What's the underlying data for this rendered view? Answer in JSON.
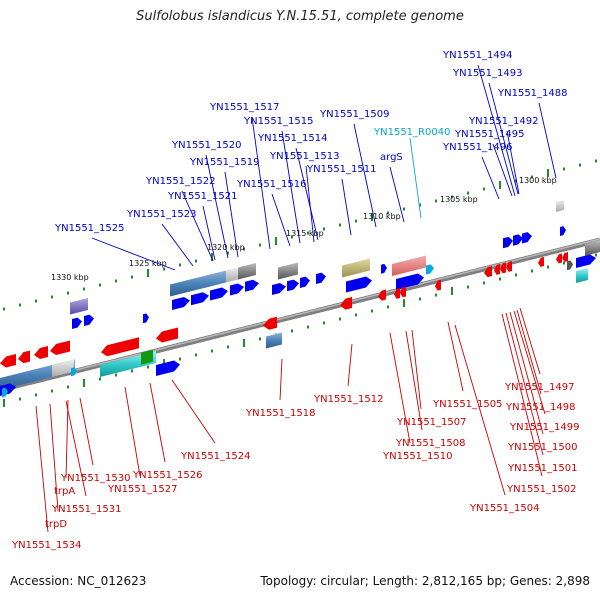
{
  "title": "Sulfolobus islandicus Y.N.15.51, complete genome",
  "footer": {
    "accession": "Accession: NC_012623",
    "summary": "Topology: circular; Length: 2,812,165 bp; Genes: 2,898"
  },
  "colors": {
    "forward_label": "#0000cc",
    "reverse_label": "#cc0000",
    "rna_label": "#00aacc",
    "backbone": "#808080",
    "tick": "#228b22"
  },
  "kbp_marks": [
    {
      "text": "1300 kbp"
    },
    {
      "text": "1305 kbp"
    },
    {
      "text": "1310 kbp"
    },
    {
      "text": "1315 kbp"
    },
    {
      "text": "1320 kbp"
    },
    {
      "text": "1325 kbp"
    },
    {
      "text": "1330 kbp"
    }
  ],
  "forward_labels": [
    {
      "text": "YN1551_1494"
    },
    {
      "text": "YN1551_1493"
    },
    {
      "text": "YN1551_1488"
    },
    {
      "text": "YN1551_1492"
    },
    {
      "text": "YN1551_1495"
    },
    {
      "text": "YN1551_1496"
    },
    {
      "text": "YN1551_1517"
    },
    {
      "text": "YN1551_1509"
    },
    {
      "text": "YN1551_1515"
    },
    {
      "text": "YN1551_1514"
    },
    {
      "text": "YN1551_1520"
    },
    {
      "text": "YN1551_1513"
    },
    {
      "text": "YN1551_1519"
    },
    {
      "text": "YN1551_1511"
    },
    {
      "text": "argS"
    },
    {
      "text": "YN1551_1522"
    },
    {
      "text": "YN1551_1516"
    },
    {
      "text": "YN1551_1521"
    },
    {
      "text": "YN1551_1523"
    },
    {
      "text": "YN1551_1525"
    }
  ],
  "rna_labels": [
    {
      "text": "YN1551_R0040"
    }
  ],
  "reverse_labels": [
    {
      "text": "YN1551_1497"
    },
    {
      "text": "YN1551_1498"
    },
    {
      "text": "YN1551_1499"
    },
    {
      "text": "YN1551_1500"
    },
    {
      "text": "YN1551_1501"
    },
    {
      "text": "YN1551_1502"
    },
    {
      "text": "YN1551_1504"
    },
    {
      "text": "YN1551_1505"
    },
    {
      "text": "YN1551_1507"
    },
    {
      "text": "YN1551_1508"
    },
    {
      "text": "YN1551_1510"
    },
    {
      "text": "YN1551_1512"
    },
    {
      "text": "YN1551_1518"
    },
    {
      "text": "YN1551_1524"
    },
    {
      "text": "YN1551_1526"
    },
    {
      "text": "YN1551_1527"
    },
    {
      "text": "YN1551_1530"
    },
    {
      "text": "trpA"
    },
    {
      "text": "YN1551_1531"
    },
    {
      "text": "trpD"
    },
    {
      "text": "YN1551_1534"
    }
  ]
}
